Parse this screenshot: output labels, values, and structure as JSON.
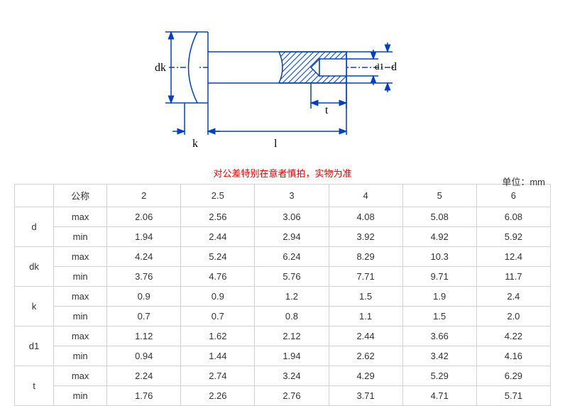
{
  "diagram": {
    "labels": {
      "dk": "dk",
      "k": "k",
      "l": "l",
      "t": "t",
      "d1": "d1",
      "d": "d"
    },
    "stroke_color": "#0040c0",
    "line_width": 1.5,
    "hatch_color": "#0040c0"
  },
  "warning_text": "对公差特别在意者慎拍，实物为准",
  "unit_text": "单位：mm",
  "table": {
    "header_label": "公称",
    "sizes": [
      "2",
      "2.5",
      "3",
      "4",
      "5",
      "6"
    ],
    "params": [
      {
        "name": "d",
        "max": [
          "2.06",
          "2.56",
          "3.06",
          "4.08",
          "5.08",
          "6.08"
        ],
        "min": [
          "1.94",
          "2.44",
          "2.94",
          "3.92",
          "4.92",
          "5.92"
        ]
      },
      {
        "name": "dk",
        "max": [
          "4.24",
          "5.24",
          "6.24",
          "8.29",
          "10.3",
          "12.4"
        ],
        "min": [
          "3.76",
          "4.76",
          "5.76",
          "7.71",
          "9.71",
          "11.7"
        ]
      },
      {
        "name": "k",
        "max": [
          "0.9",
          "0.9",
          "1.2",
          "1.5",
          "1.9",
          "2.4"
        ],
        "min": [
          "0.7",
          "0.7",
          "0.8",
          "1.1",
          "1.5",
          "2.0"
        ]
      },
      {
        "name": "d1",
        "max": [
          "1.12",
          "1.62",
          "2.12",
          "2.44",
          "3.66",
          "4.22"
        ],
        "min": [
          "0.94",
          "1.44",
          "1.94",
          "2.62",
          "3.42",
          "4.16"
        ]
      },
      {
        "name": "t",
        "max": [
          "2.24",
          "2.74",
          "3.24",
          "4.29",
          "5.29",
          "6.29"
        ],
        "min": [
          "1.76",
          "2.26",
          "2.76",
          "3.71",
          "4.71",
          "5.71"
        ]
      }
    ],
    "row_labels": {
      "max": "max",
      "min": "min"
    }
  }
}
